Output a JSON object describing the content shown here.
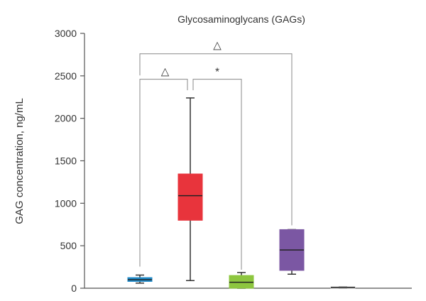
{
  "chart_data": {
    "type": "box",
    "title": "Glycosaminoglycans (GAGs)",
    "xlabel": "",
    "ylabel": "GAG concentration, ng/mL",
    "ylim": [
      0,
      3000
    ],
    "yticks": [
      0,
      500,
      1000,
      1500,
      2000,
      2500,
      3000
    ],
    "grid": false,
    "boxes": [
      {
        "color": "#1f8ac8",
        "min": 60,
        "q1": 80,
        "median": 100,
        "q3": 125,
        "max": 155
      },
      {
        "color": "#e8343c",
        "min": 90,
        "q1": 800,
        "median": 1090,
        "q3": 1345,
        "max": 2240
      },
      {
        "color": "#8dc63f",
        "min": 0,
        "q1": 0,
        "median": 70,
        "q3": 150,
        "max": 185
      },
      {
        "color": "#7b57a3",
        "min": 165,
        "q1": 210,
        "median": 450,
        "q3": 690,
        "max": 690
      },
      {
        "color": "#c6c6c6",
        "min": 0,
        "q1": 5,
        "median": 10,
        "q3": 15,
        "max": 15
      }
    ],
    "significance": [
      {
        "from": 1,
        "to": 0,
        "label": "△"
      },
      {
        "from": 1,
        "to": 2,
        "label": "*"
      },
      {
        "from": 0,
        "to": 3,
        "label": "△"
      }
    ]
  }
}
